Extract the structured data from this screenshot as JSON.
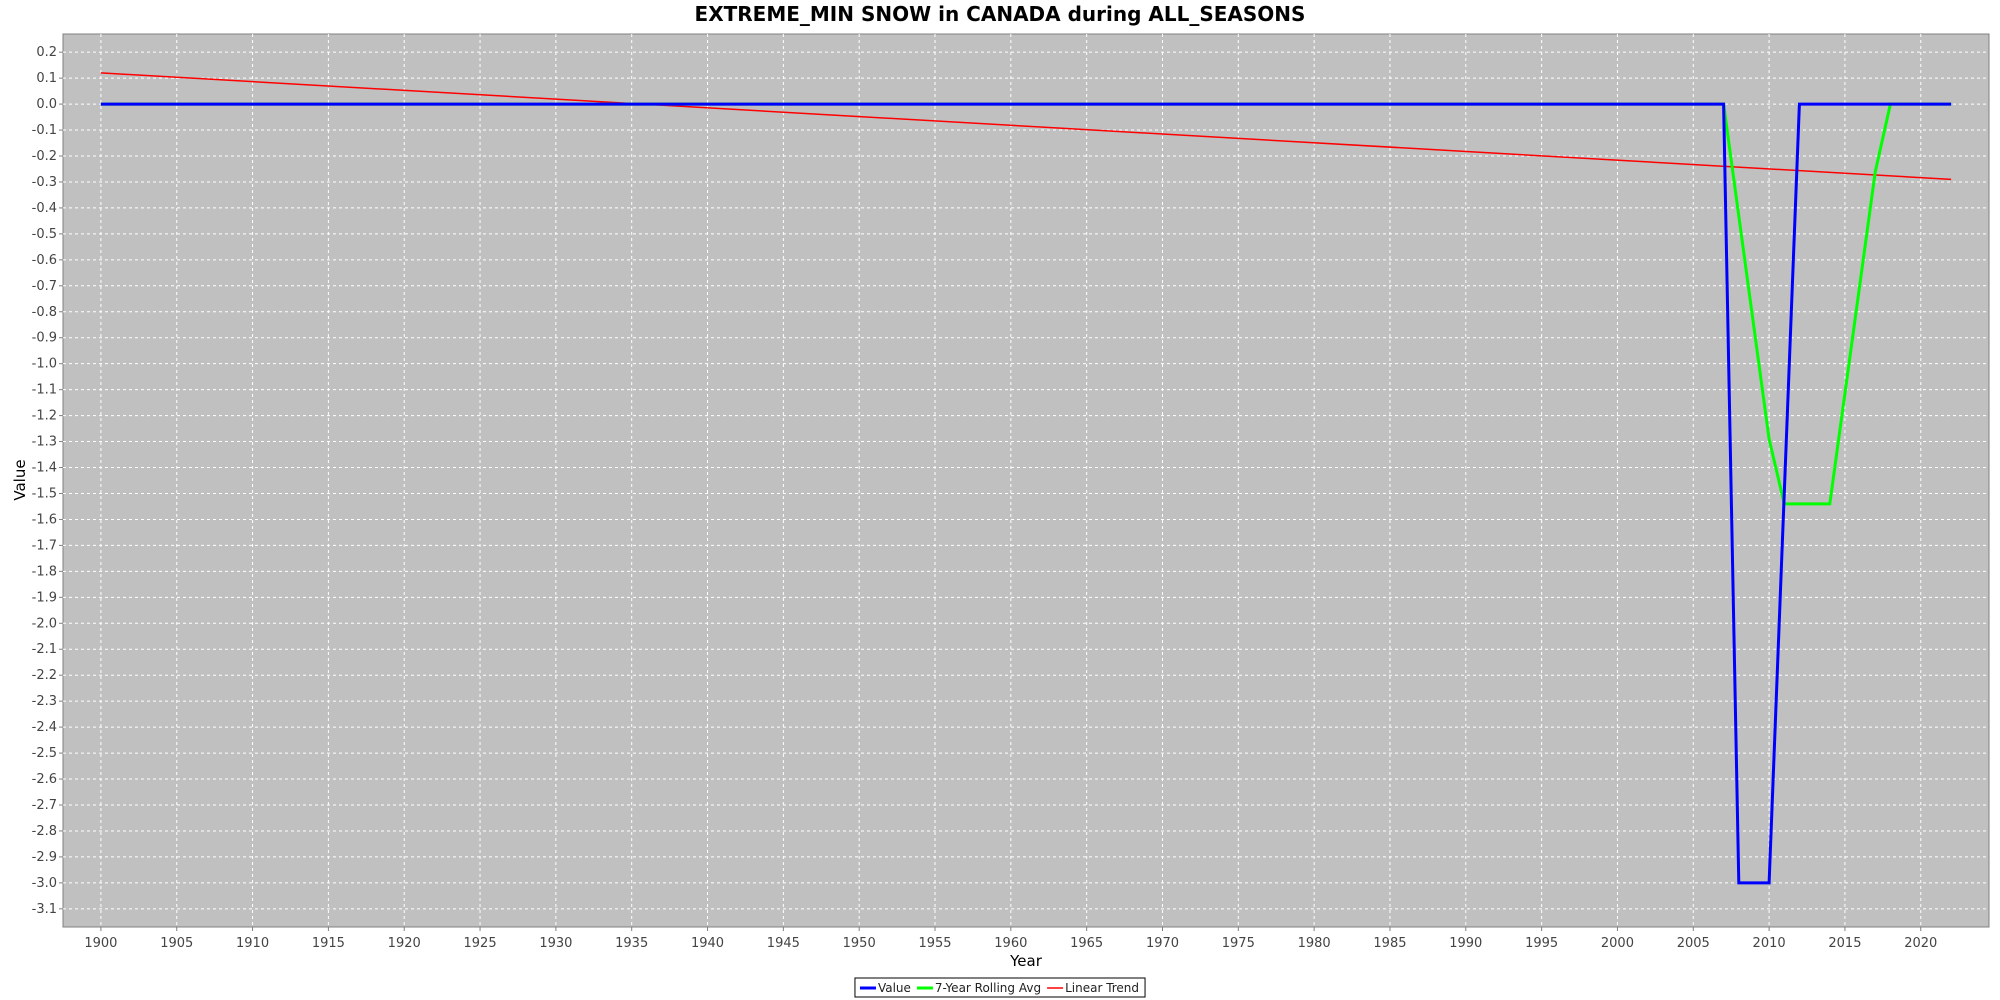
{
  "chart_data": {
    "type": "line",
    "title": "EXTREME_MIN SNOW in CANADA during ALL_SEASONS",
    "xlabel": "Year",
    "ylabel": "Value",
    "xlim": [
      1897.5,
      2024.5
    ],
    "ylim": [
      -3.17,
      0.27
    ],
    "x_ticks": [
      1900,
      1905,
      1910,
      1915,
      1920,
      1925,
      1930,
      1935,
      1940,
      1945,
      1950,
      1955,
      1960,
      1965,
      1970,
      1975,
      1980,
      1985,
      1990,
      1995,
      2000,
      2005,
      2010,
      2015,
      2020
    ],
    "y_ticks": [
      0.2,
      0.1,
      0.0,
      -0.1,
      -0.2,
      -0.3,
      -0.4,
      -0.5,
      -0.6,
      -0.7,
      -0.8,
      -0.9,
      -1.0,
      -1.1,
      -1.2,
      -1.3,
      -1.4,
      -1.5,
      -1.6,
      -1.7,
      -1.8,
      -1.9,
      -2.0,
      -2.1,
      -2.2,
      -2.3,
      -2.4,
      -2.5,
      -2.6,
      -2.7,
      -2.8,
      -2.9,
      -3.0,
      -3.1
    ],
    "grid": true,
    "legend_position": "bottom-center",
    "series": [
      {
        "name": "Value",
        "color": "#0000ff",
        "points": [
          [
            1900,
            0
          ],
          [
            2007,
            0
          ],
          [
            2008,
            -3.0
          ],
          [
            2010,
            -3.0
          ],
          [
            2012,
            0
          ],
          [
            2022,
            0
          ]
        ]
      },
      {
        "name": "7-Year Rolling Avg",
        "color": "#00ff00",
        "points": [
          [
            1900,
            0
          ],
          [
            2007,
            0
          ],
          [
            2010,
            -1.29
          ],
          [
            2011,
            -1.54
          ],
          [
            2014,
            -1.54
          ],
          [
            2017,
            -0.26
          ],
          [
            2018,
            0
          ],
          [
            2022,
            0
          ]
        ]
      },
      {
        "name": "Linear Trend",
        "color": "#ff0000",
        "points": [
          [
            1900,
            0.12
          ],
          [
            2022,
            -0.29
          ]
        ]
      }
    ]
  }
}
